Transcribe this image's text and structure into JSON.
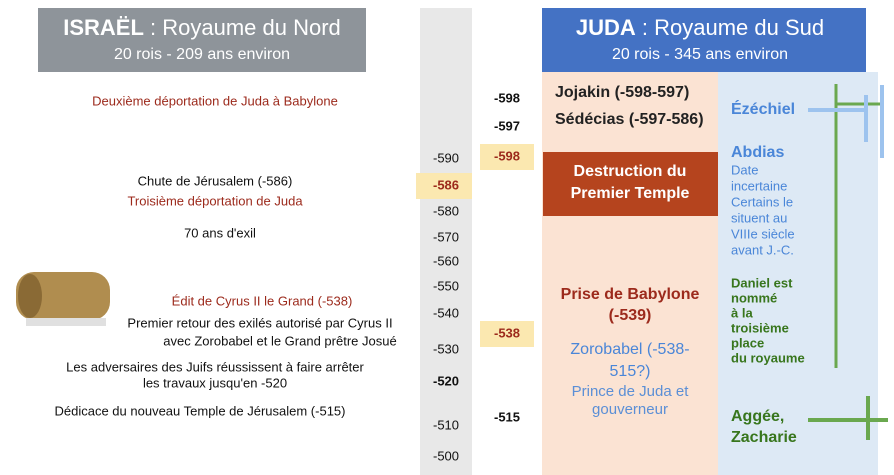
{
  "left_header": {
    "name": "ISRAËL",
    "title": " : Royaume du Nord",
    "subtitle": "20 rois - 209 ans environ"
  },
  "right_header": {
    "name": "JUDA",
    "title": " : Royaume du Sud",
    "subtitle": "20 rois - 345 ans environ"
  },
  "left_events": {
    "deportation_2": "Deuxième déportation de Juda à Babylone",
    "fall": "Chute de Jérusalem (-586)",
    "deportation_3": "Troisième déportation de Juda",
    "exile": "70 ans d'exil",
    "edict": "Édit de Cyrus II le Grand (-538)",
    "return": [
      "Premier retour des exilés autorisé par Cyrus II",
      "avec Zorobabel et le Grand prêtre Josué"
    ],
    "adversaries": [
      "Les adversaires des Juifs réussissent à faire arrêter",
      "les travaux jusqu'en -520"
    ],
    "dedication": "Dédicace du nouveau Temple de Jérusalem (-515)"
  },
  "timeline": [
    "-590",
    "-586",
    "-580",
    "-570",
    "-560",
    "-550",
    "-540",
    "-530",
    "-520",
    "-510",
    "-500"
  ],
  "judah_years": [
    "-598",
    "-597",
    "-598",
    "-538",
    "-515"
  ],
  "judah_events": {
    "kings": [
      "Jojakin (-598-597)",
      "Sédécias (-597-586)"
    ],
    "destruction": [
      "Destruction du",
      "Premier Temple"
    ],
    "babylon": [
      "Prise de Babylone",
      "(-539)"
    ],
    "zerubbabel": [
      "Zorobabel (-538-",
      "515?)"
    ],
    "prince": [
      "Prince de Juda et",
      "gouverneur"
    ]
  },
  "prophets": {
    "ezekiel": "Ézéchiel",
    "obadiah": "Abdias",
    "obadiah_note": [
      "Date",
      "incertaine",
      "Certains le",
      "situent au",
      "VIIIe siècle",
      "avant J.-C."
    ],
    "daniel": [
      "Daniel est",
      "nommé",
      "à la",
      "troisième",
      "place",
      "du royaume"
    ],
    "haggai": [
      "Aggée,",
      "Zacharie"
    ]
  }
}
